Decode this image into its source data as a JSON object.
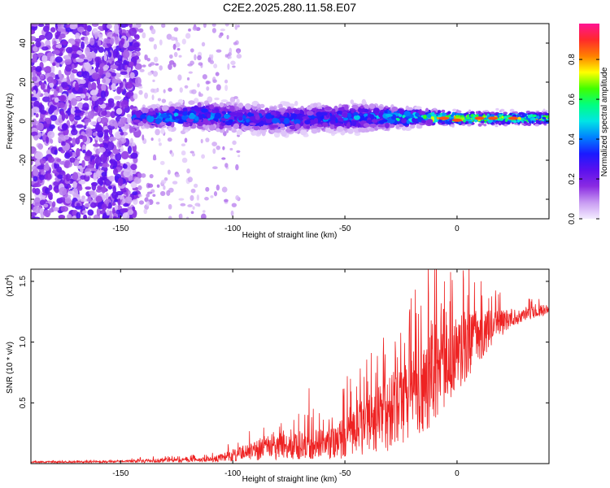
{
  "chart_data": [
    {
      "type": "heatmap",
      "title": "C2E2.2025.280.11.58.E07",
      "xlabel": "Height of straight line (km)",
      "ylabel": "Frequency (Hz)",
      "xlim": [
        -190,
        41
      ],
      "ylim": [
        -50,
        50
      ],
      "x_ticks": [
        -150,
        -100,
        -50,
        0
      ],
      "x_tick_labels": [
        "-150",
        "-100",
        "-50",
        "0"
      ],
      "y_ticks": [
        -40,
        -20,
        0,
        20,
        40
      ],
      "y_tick_labels": [
        "-40",
        "-20",
        "0",
        "20",
        "40"
      ],
      "colorbar": {
        "label": "Normalized spectral amplitude",
        "range": [
          0,
          0.98
        ],
        "ticks": [
          0,
          0.2,
          0.4,
          0.6,
          0.8
        ],
        "tick_labels": [
          "0.0",
          "0.2",
          "0.4",
          "0.6",
          "0.8"
        ],
        "colormap": [
          "#f4ecff",
          "#c89bf2",
          "#8a2be2",
          "#5a10ee",
          "#1a1aff",
          "#0080ff",
          "#00e5e5",
          "#00ff80",
          "#40ff00",
          "#ffff00",
          "#ff8000",
          "#ff2a2a",
          "#ff1493"
        ]
      },
      "signal_band": {
        "ridge": [
          {
            "x": -144,
            "freq": 2,
            "width": 3,
            "amp": 0.35
          },
          {
            "x": -130,
            "freq": 2,
            "width": 4,
            "amp": 0.4
          },
          {
            "x": -115,
            "freq": 3,
            "width": 5,
            "amp": 0.38
          },
          {
            "x": -100,
            "freq": 2,
            "width": 5,
            "amp": 0.35
          },
          {
            "x": -85,
            "freq": 1,
            "width": 5,
            "amp": 0.33
          },
          {
            "x": -70,
            "freq": 1,
            "width": 5,
            "amp": 0.33
          },
          {
            "x": -55,
            "freq": 2,
            "width": 5,
            "amp": 0.35
          },
          {
            "x": -42,
            "freq": 2,
            "width": 5,
            "amp": 0.38
          },
          {
            "x": -30,
            "freq": 2,
            "width": 4,
            "amp": 0.45
          },
          {
            "x": -15,
            "freq": 2,
            "width": 3,
            "amp": 0.55
          },
          {
            "x": 0,
            "freq": 1.5,
            "width": 2.5,
            "amp": 0.75
          },
          {
            "x": 20,
            "freq": 1.5,
            "width": 2.5,
            "amp": 0.65
          },
          {
            "x": 41,
            "freq": 1.5,
            "width": 2.5,
            "amp": 0.6
          }
        ],
        "noise_until_x": -142
      }
    },
    {
      "type": "line",
      "xlabel": "Height of straight line (km)",
      "ylabel": "SNR (10 * v/v)",
      "y_scale_label": "(x10",
      "y_scale_exponent": "4",
      "y_scale_close": ")",
      "xlim": [
        -190,
        41
      ],
      "ylim": [
        0,
        1.6
      ],
      "x_ticks": [
        -150,
        -100,
        -50,
        0
      ],
      "x_tick_labels": [
        "-150",
        "-100",
        "-50",
        "0"
      ],
      "y_ticks": [
        0.5,
        1.0,
        1.5
      ],
      "y_tick_labels": [
        "0.5",
        "1.0",
        "1.5"
      ],
      "color": "#ee2222",
      "envelope": [
        {
          "x": -190,
          "base": 0.012,
          "amp": 0.006
        },
        {
          "x": -150,
          "base": 0.015,
          "amp": 0.008
        },
        {
          "x": -140,
          "base": 0.02,
          "amp": 0.015
        },
        {
          "x": -110,
          "base": 0.03,
          "amp": 0.02
        },
        {
          "x": -100,
          "base": 0.06,
          "amp": 0.05
        },
        {
          "x": -90,
          "base": 0.1,
          "amp": 0.08
        },
        {
          "x": -70,
          "base": 0.14,
          "amp": 0.12
        },
        {
          "x": -55,
          "base": 0.16,
          "amp": 0.14
        },
        {
          "x": -45,
          "base": 0.25,
          "amp": 0.22
        },
        {
          "x": -30,
          "base": 0.38,
          "amp": 0.32
        },
        {
          "x": -20,
          "base": 0.52,
          "amp": 0.36
        },
        {
          "x": -12,
          "base": 0.7,
          "amp": 0.45
        },
        {
          "x": -5,
          "base": 0.8,
          "amp": 0.35
        },
        {
          "x": 5,
          "base": 0.95,
          "amp": 0.3
        },
        {
          "x": 15,
          "base": 1.1,
          "amp": 0.15
        },
        {
          "x": 25,
          "base": 1.2,
          "amp": 0.07
        },
        {
          "x": 41,
          "base": 1.27,
          "amp": 0.04
        }
      ],
      "spikes": [
        {
          "x": -66,
          "y": 0.62
        },
        {
          "x": -49,
          "y": 0.72
        },
        {
          "x": -32,
          "y": 0.9
        },
        {
          "x": -16,
          "y": 1.3
        },
        {
          "x": -10,
          "y": 1.6
        },
        {
          "x": -6,
          "y": 1.27
        },
        {
          "x": 2,
          "y": 1.22
        },
        {
          "x": 10,
          "y": 1.1
        }
      ]
    }
  ]
}
